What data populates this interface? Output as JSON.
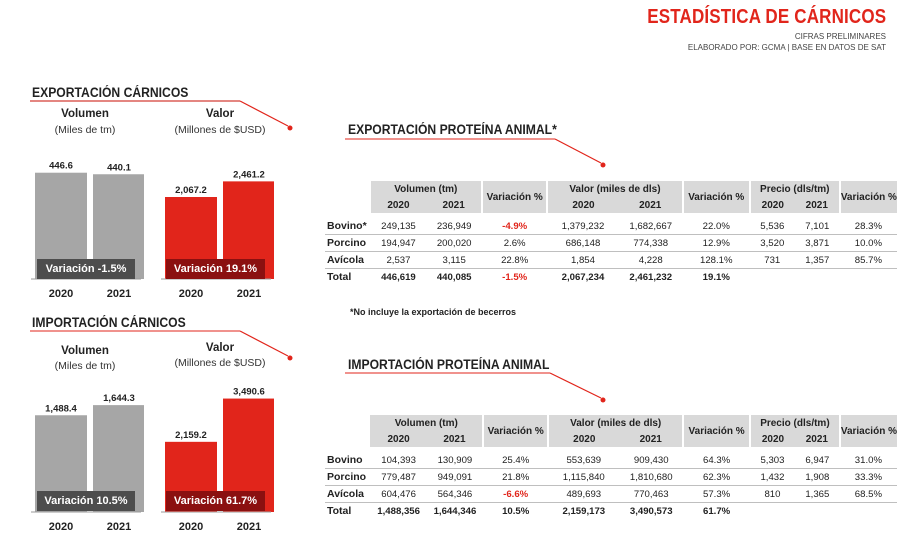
{
  "header": {
    "title": "ESTADÍSTICA DE CÁRNICOS",
    "subtitle1": "CIFRAS PRELIMINARES",
    "subtitle2": "ELABORADO POR: GCMA | BASE EN DATOS DE SAT"
  },
  "colors": {
    "accent": "#e1251b",
    "gray_bar": "#a6a6a6",
    "dark_band": "#4d4d4d",
    "dark_red_band": "#8b1010"
  },
  "export_charts": {
    "title": "EXPORTACIÓN CÁRNICOS",
    "volumen": {
      "label": "Volumen",
      "unit": "(Miles de tm)",
      "variation": "Variación -1.5%"
    },
    "valor": {
      "label": "Valor",
      "unit": "(Millones de $USD)",
      "variation": "Variación 19.1%"
    }
  },
  "import_charts": {
    "title": "IMPORTACIÓN CÁRNICOS",
    "volumen": {
      "label": "Volumen",
      "unit": "(Miles de tm)",
      "variation": "Variación 10.5%"
    },
    "valor": {
      "label": "Valor",
      "unit": "(Millones de $USD)",
      "variation": "Variación 61.7%"
    }
  },
  "chart_data": [
    {
      "type": "bar",
      "title": "Volumen",
      "ylabel": "(Miles de tm)",
      "categories": [
        "2020",
        "2021"
      ],
      "values": [
        446.6,
        440.1
      ],
      "value_labels": [
        "446.6",
        "440.1"
      ],
      "color": "#a6a6a6",
      "ylim": [
        0,
        500
      ]
    },
    {
      "type": "bar",
      "title": "Valor",
      "ylabel": "(Millones de $USD)",
      "categories": [
        "2020",
        "2021"
      ],
      "values": [
        2067.2,
        2461.2
      ],
      "value_labels": [
        "2,067.2",
        "2,461.2"
      ],
      "color": "#e1251b",
      "ylim": [
        0,
        3000
      ]
    },
    {
      "type": "bar",
      "title": "Volumen",
      "ylabel": "(Miles de tm)",
      "categories": [
        "2020",
        "2021"
      ],
      "values": [
        1488.4,
        1644.3
      ],
      "value_labels": [
        "1,488.4",
        "1,644.3"
      ],
      "color": "#a6a6a6",
      "ylim": [
        0,
        1800
      ]
    },
    {
      "type": "bar",
      "title": "Valor",
      "ylabel": "(Millones de $USD)",
      "categories": [
        "2020",
        "2021"
      ],
      "values": [
        2159.2,
        3490.6
      ],
      "value_labels": [
        "2,159.2",
        "3,490.6"
      ],
      "color": "#e1251b",
      "ylim": [
        0,
        3600
      ]
    }
  ],
  "export_table": {
    "title": "EXPORTACIÓN PROTEÍNA ANIMAL*",
    "groups": [
      "Volumen (tm)",
      "Valor (miles de dls)",
      "Precio (dls/tm)"
    ],
    "variation_header": "Variación %",
    "years": [
      "2020",
      "2021"
    ],
    "rows": [
      {
        "label": "Bovino*",
        "cells": [
          "249,135",
          "236,949",
          "-4.9%",
          "1,379,232",
          "1,682,667",
          "22.0%",
          "5,536",
          "7,101",
          "28.3%"
        ]
      },
      {
        "label": "Porcino",
        "cells": [
          "194,947",
          "200,020",
          "2.6%",
          "686,148",
          "774,338",
          "12.9%",
          "3,520",
          "3,871",
          "10.0%"
        ]
      },
      {
        "label": "Avícola",
        "cells": [
          "2,537",
          "3,115",
          "22.8%",
          "1,854",
          "4,228",
          "128.1%",
          "731",
          "1,357",
          "85.7%"
        ]
      }
    ],
    "total": {
      "label": "Total",
      "cells": [
        "446,619",
        "440,085",
        "-1.5%",
        "2,067,234",
        "2,461,232",
        "19.1%"
      ]
    },
    "note": "*No incluye la exportación de becerros"
  },
  "import_table": {
    "title": "IMPORTACIÓN PROTEÍNA ANIMAL",
    "groups": [
      "Volumen (tm)",
      "Valor (miles de dls)",
      "Precio (dls/tm)"
    ],
    "variation_header": "Variación %",
    "years": [
      "2020",
      "2021"
    ],
    "rows": [
      {
        "label": "Bovino",
        "cells": [
          "104,393",
          "130,909",
          "25.4%",
          "553,639",
          "909,430",
          "64.3%",
          "5,303",
          "6,947",
          "31.0%"
        ]
      },
      {
        "label": "Porcino",
        "cells": [
          "779,487",
          "949,091",
          "21.8%",
          "1,115,840",
          "1,810,680",
          "62.3%",
          "1,432",
          "1,908",
          "33.3%"
        ]
      },
      {
        "label": "Avícola",
        "cells": [
          "604,476",
          "564,346",
          "-6.6%",
          "489,693",
          "770,463",
          "57.3%",
          "810",
          "1,365",
          "68.5%"
        ]
      }
    ],
    "total": {
      "label": "Total",
      "cells": [
        "1,488,356",
        "1,644,346",
        "10.5%",
        "2,159,173",
        "3,490,573",
        "61.7%"
      ]
    }
  }
}
